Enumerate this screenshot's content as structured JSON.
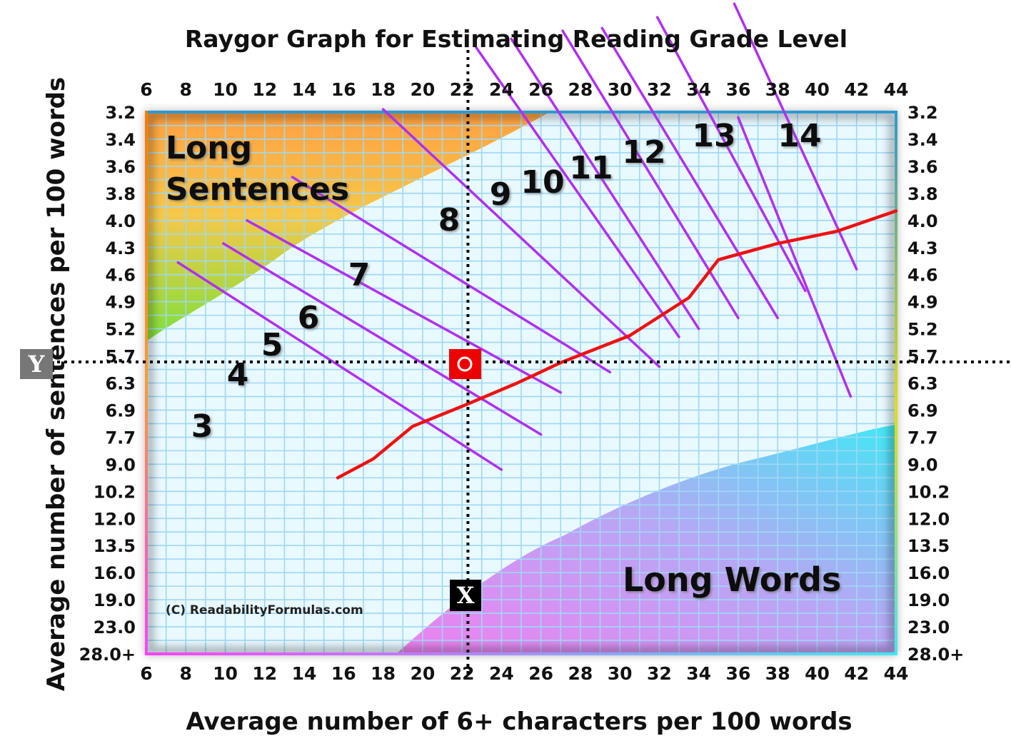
{
  "chart_data": {
    "type": "line",
    "title": "Raygor Graph for Estimating Reading Grade Level",
    "xlabel": "Average number of 6+ characters per 100 words",
    "ylabel": "Average number of sentences per 100 words",
    "x_ticks": [
      "6",
      "8",
      "10",
      "12",
      "14",
      "16",
      "18",
      "20",
      "22",
      "24",
      "26",
      "28",
      "30",
      "32",
      "34",
      "36",
      "38",
      "40",
      "42",
      "44"
    ],
    "y_ticks": [
      "3.2",
      "3.4",
      "3.6",
      "3.8",
      "4.0",
      "4.3",
      "4.6",
      "4.9",
      "5.2",
      "5.7",
      "6.3",
      "6.9",
      "7.7",
      "9.0",
      "10.2",
      "12.0",
      "13.5",
      "16.0",
      "19.0",
      "23.0",
      "28.0+"
    ],
    "xlim": [
      6,
      44
    ],
    "y_scale": "categorical tick rows, top to bottom from 3.2 to 28.0+",
    "grid": true,
    "regions": {
      "long_sentences": "Long\nSentences",
      "long_words": "Long Words"
    },
    "copyright": "(C) ReadabilityFormulas.com",
    "colors": {
      "grade_lines": "#b030f0",
      "curve": "#ee1111",
      "grid": "#9fd8f5",
      "long_sentences": [
        "#ffa040",
        "#f3d24a",
        "#7ee03a"
      ],
      "long_words": [
        "#ef80f0",
        "#b6a8f5",
        "#4ae8f3"
      ],
      "frame": [
        "#2a9bd0",
        "#ff7a00",
        "#e0e000",
        "#ff40ff"
      ]
    },
    "grade_lines": [
      {
        "label": "3",
        "from": [
          7.6,
          5.55
        ],
        "to": [
          24,
          13.2
        ]
      },
      {
        "label": "4",
        "from": [
          9.9,
          4.85
        ],
        "to": [
          26,
          11.9
        ]
      },
      {
        "label": "5",
        "from": [
          11.1,
          4.0
        ],
        "to": [
          27,
          10.35
        ]
      },
      {
        "label": "6",
        "from": [
          13.4,
          2.4
        ],
        "to": [
          29.5,
          9.6
        ]
      },
      {
        "label": "7",
        "from": [
          18.0,
          -0.1
        ],
        "to": [
          32,
          9.4
        ]
      },
      {
        "label": "8",
        "from": [
          22.7,
          -2.4
        ],
        "to": [
          33,
          8.3
        ]
      },
      {
        "label": "9",
        "from": [
          24.5,
          -2.7
        ],
        "to": [
          34,
          8.0
        ]
      },
      {
        "label": "10",
        "from": [
          27.1,
          -3.0
        ],
        "to": [
          36,
          7.6
        ]
      },
      {
        "label": "11",
        "from": [
          29.1,
          -3.1
        ],
        "to": [
          38,
          7.6
        ]
      },
      {
        "label": "12",
        "from": [
          31.9,
          -3.5
        ],
        "to": [
          39.4,
          6.6
        ]
      },
      {
        "label": "13",
        "from": [
          35.8,
          -4.0
        ],
        "to": [
          42,
          5.8
        ]
      },
      {
        "label": "14",
        "from": [
          36.0,
          0.2
        ],
        "to": [
          41.7,
          10.5
        ]
      }
    ],
    "curve_points": [
      {
        "x": 15.7,
        "y": 13.5
      },
      {
        "x": 17.5,
        "y": 12.8
      },
      {
        "x": 19.5,
        "y": 11.6
      },
      {
        "x": 22.2,
        "y": 10.8
      },
      {
        "x": 24.8,
        "y": 10.0
      },
      {
        "x": 27.0,
        "y": 9.25
      },
      {
        "x": 30.5,
        "y": 8.25
      },
      {
        "x": 33.5,
        "y": 6.85
      },
      {
        "x": 35.0,
        "y": 5.45
      },
      {
        "x": 38.0,
        "y": 4.85
      },
      {
        "x": 41.0,
        "y": 4.4
      },
      {
        "x": 44.0,
        "y": 3.65
      }
    ],
    "marker": {
      "x_label": "X",
      "y_label": "Y",
      "x": 22.3,
      "y": 9.2
    }
  }
}
